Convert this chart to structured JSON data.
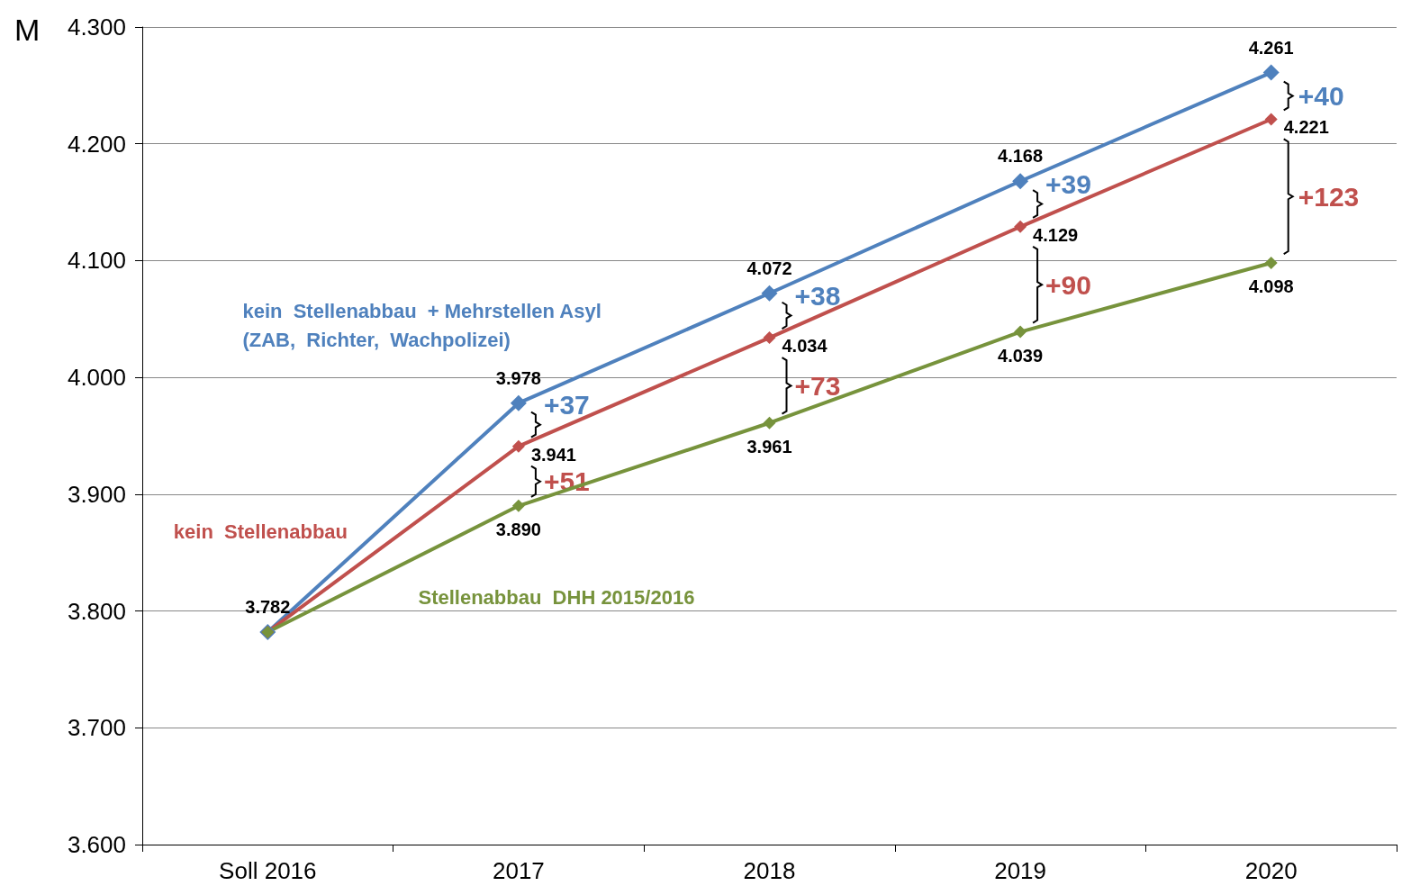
{
  "chart_data": {
    "type": "line",
    "categories": [
      "Soll 2016",
      "2017",
      "2018",
      "2019",
      "2020"
    ],
    "series": [
      {
        "name": "kein  Stellenabbau  + Mehrstellen Asyl  (ZAB,  Richter,  Wachpolizei)",
        "color": "#4f81bd",
        "values": [
          3782,
          3978,
          4072,
          4168,
          4261
        ],
        "value_labels": [
          "3.782",
          "3.978",
          "4.072",
          "4.168",
          "4.261"
        ]
      },
      {
        "name": "kein  Stellenabbau",
        "color": "#c0504d",
        "values": [
          3782,
          3941,
          4034,
          4129,
          4221
        ],
        "value_labels": [
          null,
          "3.941",
          "4.034",
          "4.129",
          "4.221"
        ]
      },
      {
        "name": "Stellenabbau  DHH 2015/2016",
        "color": "#77933c",
        "values": [
          3782,
          3890,
          3961,
          4039,
          4098
        ],
        "value_labels": [
          null,
          "3.890",
          "3.961",
          "4.039",
          "4.098"
        ]
      }
    ],
    "ylim": [
      3600,
      4300
    ],
    "yticks": [
      {
        "value": 3600,
        "label": "3.600"
      },
      {
        "value": 3700,
        "label": "3.700"
      },
      {
        "value": 3800,
        "label": "3.800"
      },
      {
        "value": 3900,
        "label": "3.900"
      },
      {
        "value": 4000,
        "label": "4.000"
      },
      {
        "value": 4100,
        "label": "4.100"
      },
      {
        "value": 4200,
        "label": "4.200"
      },
      {
        "value": 4300,
        "label": "4.300"
      }
    ],
    "grid": "y",
    "legend": false,
    "marker": "diamond",
    "line_style": "solid",
    "annotations": [
      "M",
      "+37",
      "+51",
      "+38",
      "+73",
      "+39",
      "+90",
      "+40",
      "+123"
    ]
  }
}
